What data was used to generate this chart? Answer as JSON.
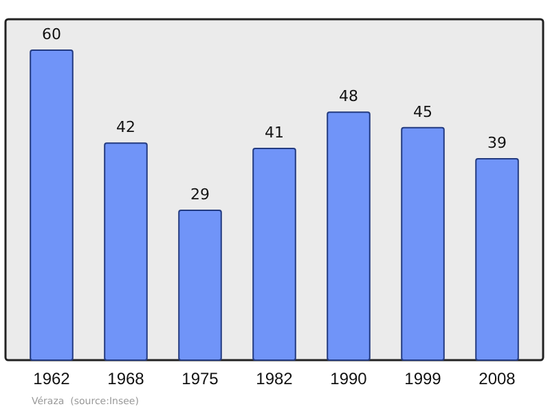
{
  "chart_data": {
    "type": "bar",
    "categories": [
      "1962",
      "1968",
      "1975",
      "1982",
      "1990",
      "1999",
      "2008"
    ],
    "values": [
      60,
      42,
      29,
      41,
      48,
      45,
      39
    ],
    "color": "#7094f8",
    "data_labels": true,
    "grid": false,
    "annotations": [
      "Véraza  (source:Insee)"
    ]
  }
}
